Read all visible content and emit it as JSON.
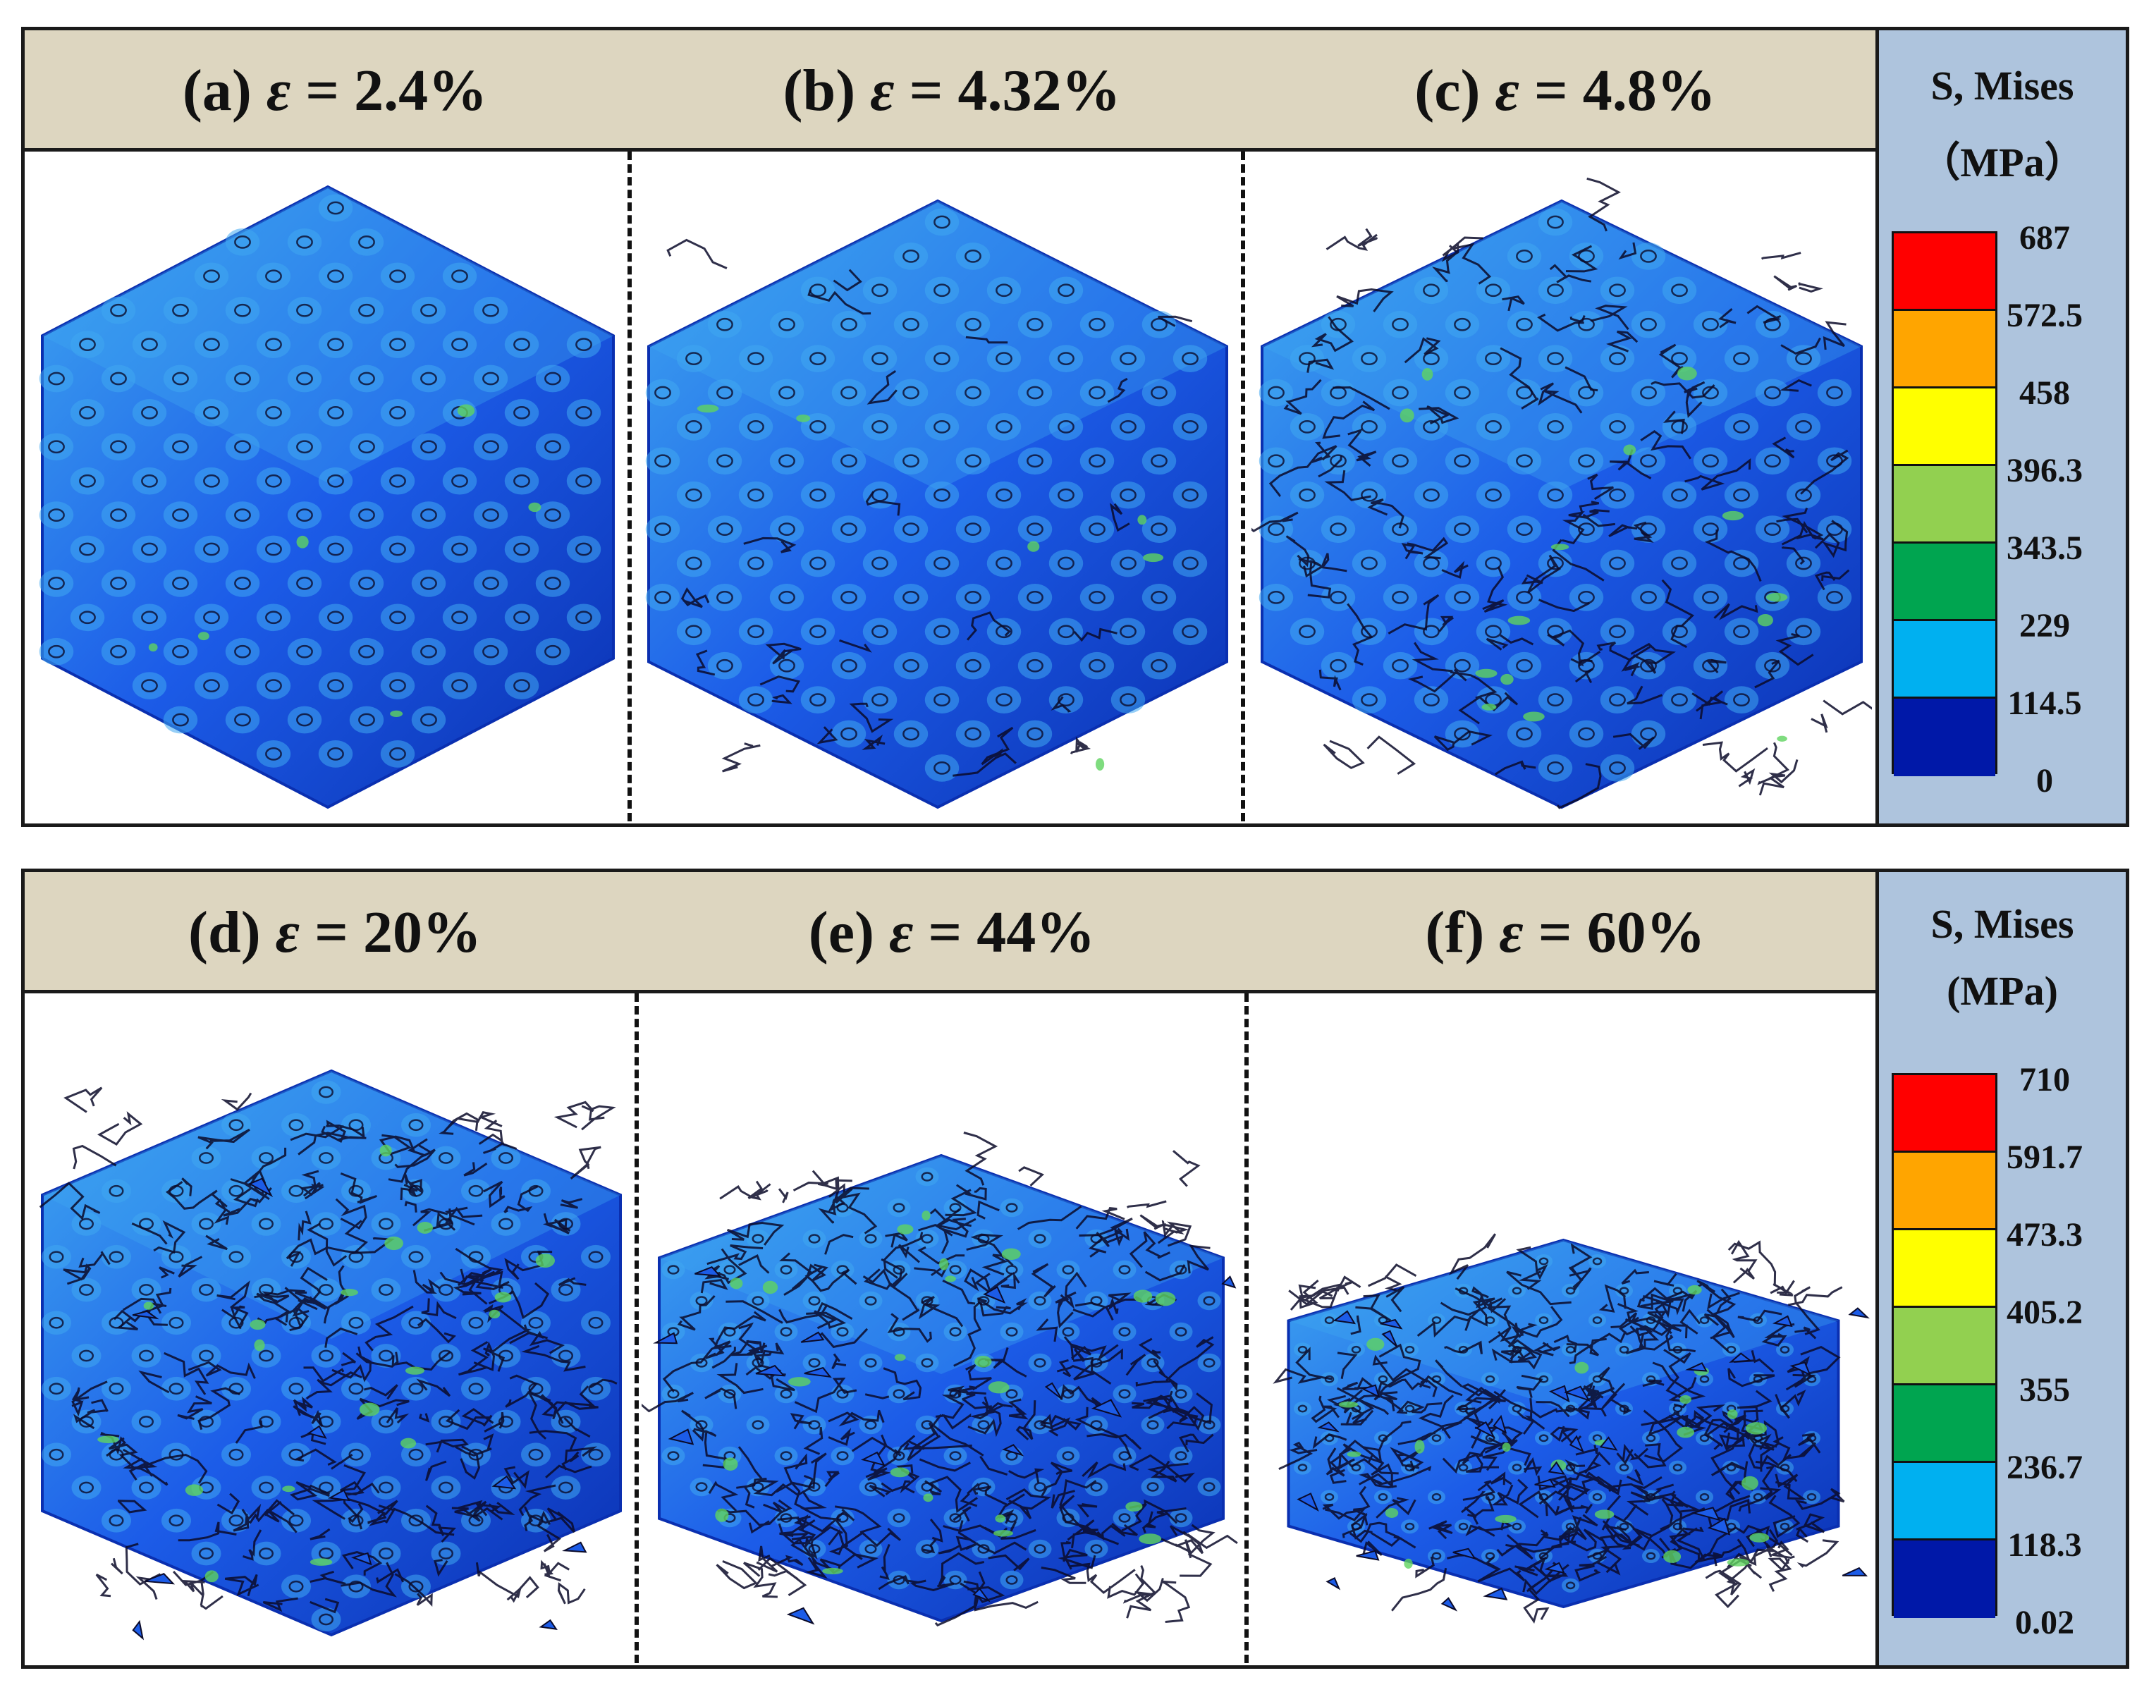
{
  "top_row": {
    "panels": [
      {
        "label": "(a)",
        "symbol": "ε",
        "value": "= 2.4%"
      },
      {
        "label": "(b)",
        "symbol": "ε",
        "value": "= 4.32%"
      },
      {
        "label": "(c)",
        "symbol": "ε",
        "value": "= 4.8%"
      }
    ],
    "legend": {
      "title_line1": "S, Mises",
      "title_line2": "（MPa）",
      "ticks": [
        "687",
        "572.5",
        "458",
        "396.3",
        "343.5",
        "229",
        "114.5",
        "0"
      ],
      "colors": [
        "#ff0000",
        "#ffa500",
        "#ffff00",
        "#92d050",
        "#00a550",
        "#00b0f0",
        "#0018a8"
      ]
    }
  },
  "bottom_row": {
    "panels": [
      {
        "label": "(d)",
        "symbol": "ε",
        "value": "= 20%"
      },
      {
        "label": "(e)",
        "symbol": "ε",
        "value": "= 44%"
      },
      {
        "label": "(f)",
        "symbol": "ε",
        "value": "= 60%"
      }
    ],
    "legend": {
      "title_line1": "S, Mises",
      "title_line2": "(MPa)",
      "ticks": [
        "710",
        "591.7",
        "473.3",
        "405.2",
        "355",
        "236.7",
        "118.3",
        "0.02"
      ],
      "colors": [
        "#ff0000",
        "#ffa500",
        "#ffff00",
        "#92d050",
        "#00a550",
        "#00b0f0",
        "#0018a8"
      ]
    }
  },
  "render_colors": {
    "lattice_base": "#1c5ce8",
    "lattice_light": "#3fa8f0",
    "lattice_dark": "#0a2fb0",
    "crack": "#0b0b2a"
  }
}
